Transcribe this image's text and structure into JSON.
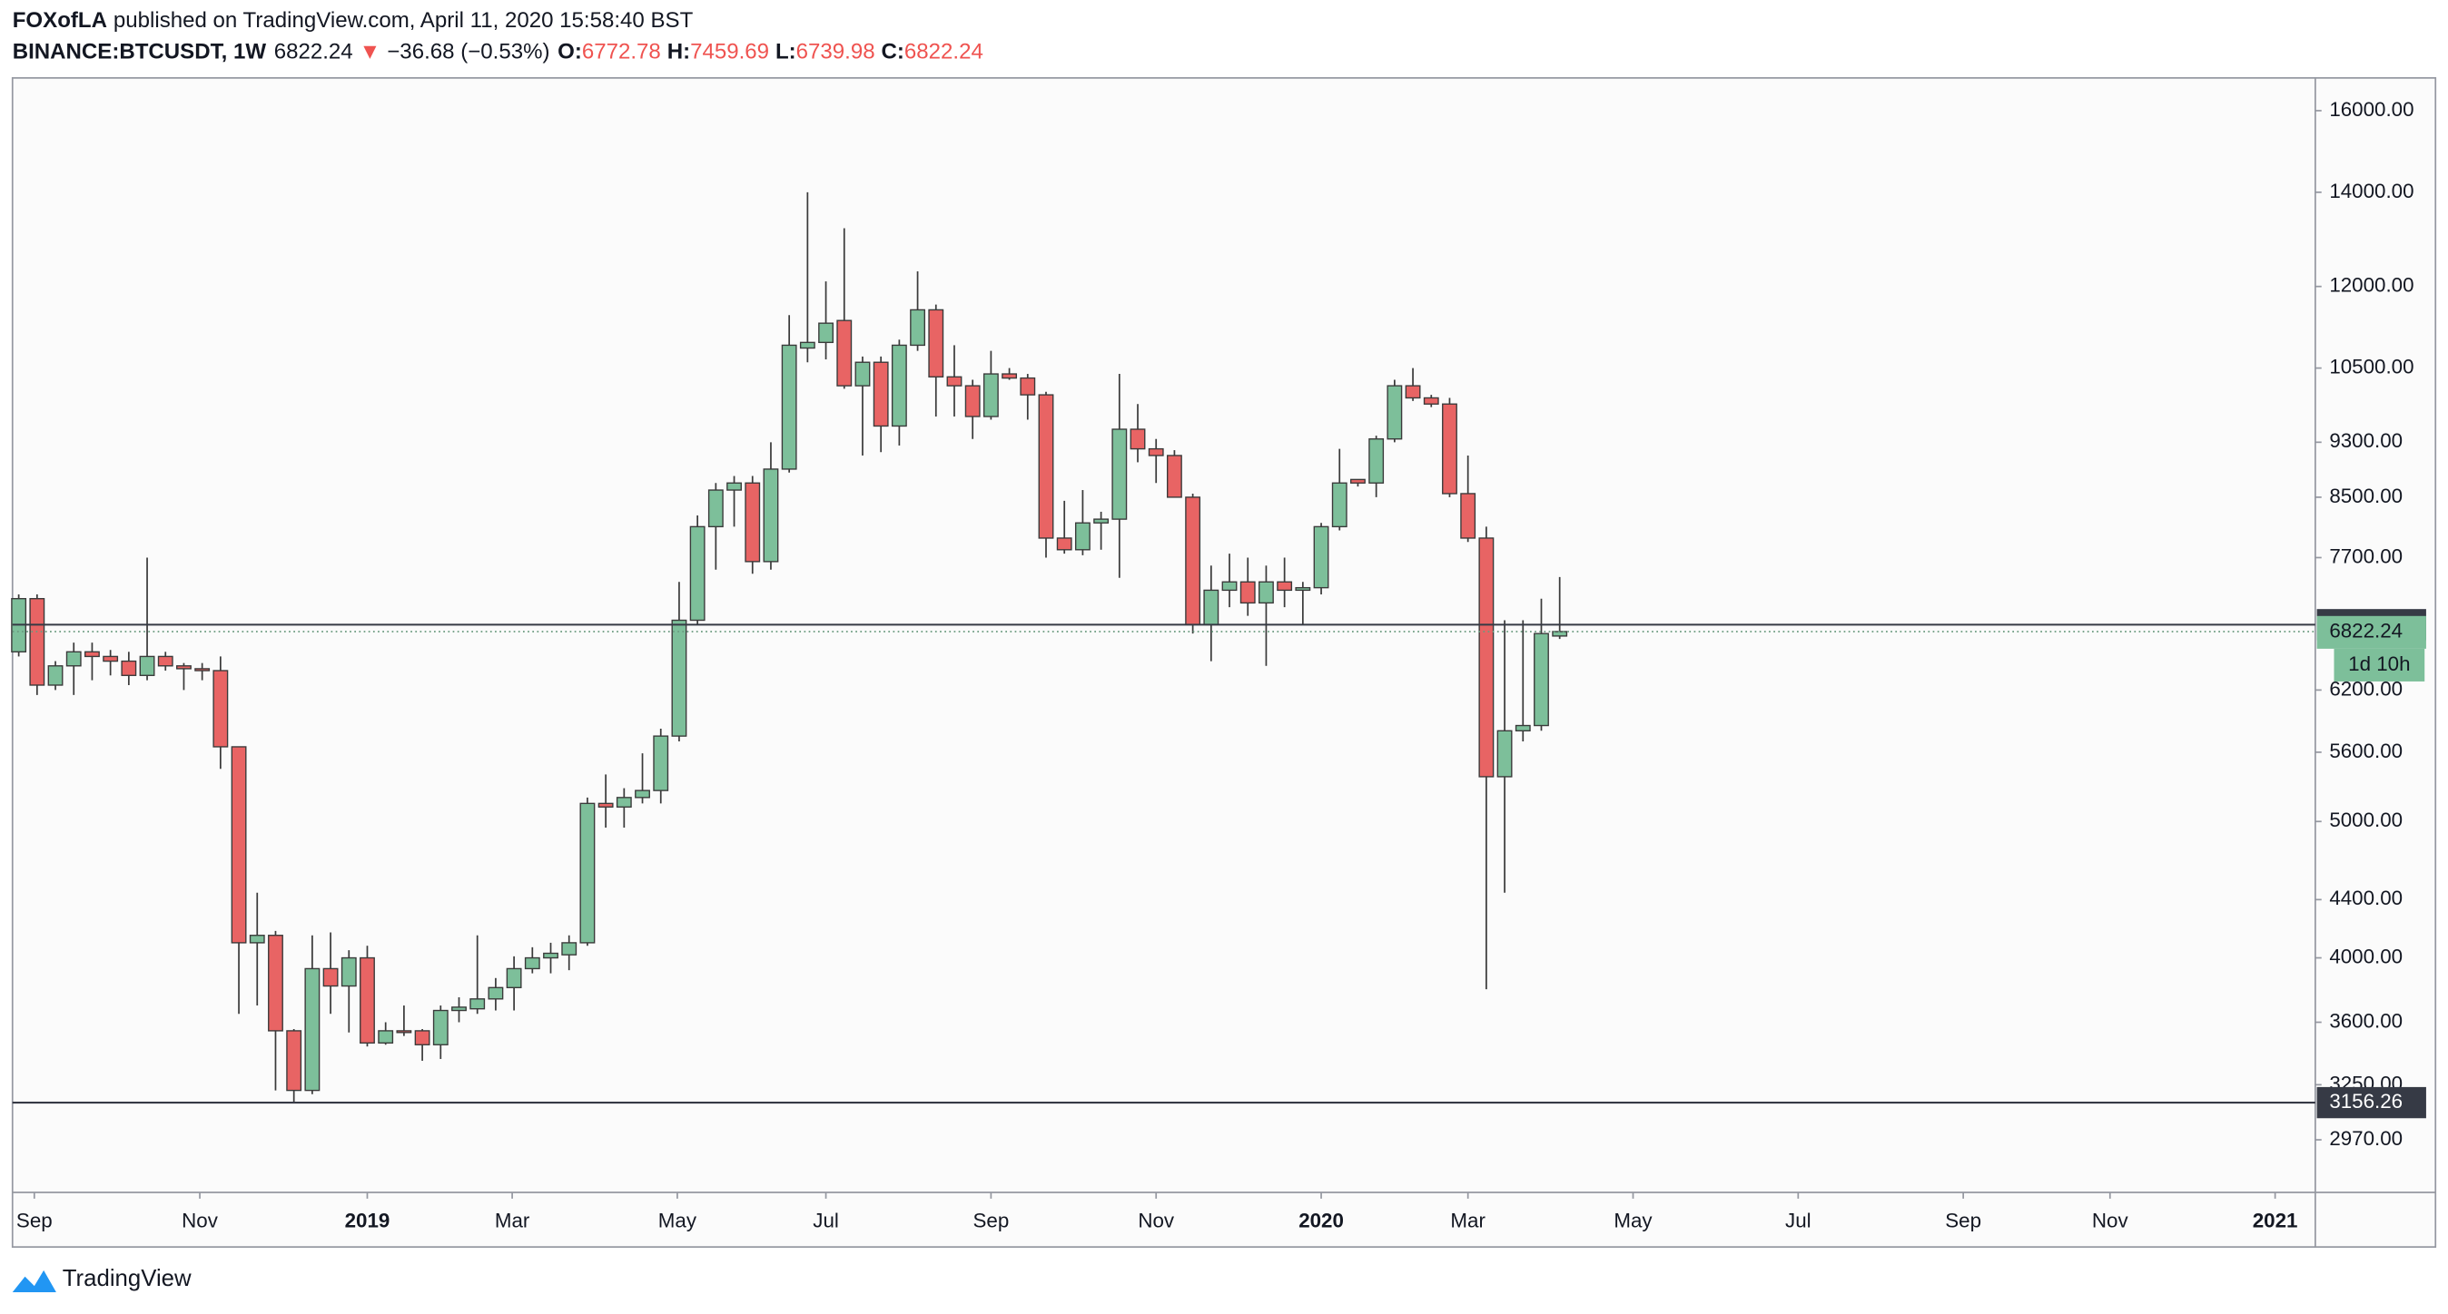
{
  "header": {
    "publisher": "FOXofLA",
    "published": "published on TradingView.com, April 11, 2020 15:58:40 BST",
    "symbol": "BINANCE:BTCUSDT, 1W",
    "last": "6822.24",
    "arrow": "▼",
    "change": "−36.68 (−0.53%)",
    "ohlc": [
      {
        "label": "O:",
        "value": "6772.78"
      },
      {
        "label": "H:",
        "value": "7459.69"
      },
      {
        "label": "L:",
        "value": "6739.98"
      },
      {
        "label": "C:",
        "value": "6822.24"
      }
    ]
  },
  "footer": {
    "brand": "TradingView"
  },
  "chart_data": {
    "type": "candlestick",
    "log_scale": true,
    "grid": false,
    "up_color": "#7dbf9a",
    "down_color": "#e86464",
    "border_color": "#3a3a3a",
    "categories": [
      null,
      null,
      null,
      null,
      null,
      null,
      null,
      null,
      null,
      null,
      null,
      null,
      null,
      null,
      null,
      null,
      null,
      null,
      null,
      null,
      null,
      null,
      null,
      null,
      null,
      null,
      null,
      null,
      null,
      null,
      null,
      null,
      null,
      null,
      null,
      null,
      null,
      null,
      null,
      null,
      null,
      null,
      null,
      null,
      null,
      null,
      null,
      null,
      null,
      null,
      null,
      null,
      null,
      null,
      null,
      null,
      null,
      null,
      null,
      null,
      null,
      null,
      null,
      null,
      null,
      null,
      null,
      null,
      null,
      null,
      null,
      null,
      null,
      null,
      null,
      null,
      null,
      null,
      null,
      null,
      null,
      null,
      null,
      null,
      null
    ],
    "open": [
      6600,
      7200,
      6250,
      6450,
      6600,
      6550,
      6500,
      6350,
      6550,
      6450,
      6420,
      6400,
      5650,
      4100,
      4150,
      3550,
      3220,
      3930,
      3820,
      4000,
      3480,
      3550,
      3550,
      3470,
      3670,
      3680,
      3740,
      3810,
      3930,
      4000,
      4020,
      4100,
      5150,
      5120,
      5200,
      5260,
      5750,
      6950,
      8100,
      8600,
      8700,
      7650,
      8900,
      10850,
      10950,
      11350,
      10200,
      10600,
      9550,
      10900,
      11550,
      10350,
      10200,
      9700,
      10400,
      10330,
      10050,
      7950,
      7800,
      8150,
      8200,
      9500,
      9200,
      9100,
      8500,
      6900,
      7300,
      7400,
      7150,
      7400,
      7300,
      7330,
      8100,
      8750,
      8700,
      9350,
      10200,
      10000,
      9900,
      8550,
      7950,
      5380,
      5800,
      5850,
      6772.78
    ],
    "high": [
      7250,
      7250,
      6500,
      6700,
      6700,
      6620,
      6600,
      7700,
      6600,
      6480,
      6480,
      6550,
      5650,
      4450,
      4180,
      3560,
      4150,
      4170,
      4050,
      4080,
      3600,
      3700,
      3560,
      3700,
      3750,
      4150,
      3870,
      4010,
      4070,
      4100,
      4150,
      5200,
      5400,
      5280,
      5590,
      5820,
      7400,
      8250,
      8700,
      8800,
      8800,
      9300,
      11450,
      14000,
      12100,
      13200,
      10700,
      10700,
      11000,
      12300,
      11650,
      10900,
      10300,
      10800,
      10500,
      10400,
      10100,
      8450,
      8600,
      8300,
      10400,
      9900,
      9350,
      9180,
      8550,
      7600,
      7750,
      7700,
      7600,
      7700,
      7400,
      8150,
      9200,
      8750,
      9400,
      10300,
      10500,
      10050,
      10000,
      9100,
      8100,
      6950,
      6950,
      7200,
      7459.69
    ],
    "low": [
      6550,
      6150,
      6200,
      6150,
      6300,
      6350,
      6250,
      6300,
      6400,
      6200,
      6300,
      5450,
      3650,
      3700,
      3220,
      3160,
      3200,
      3650,
      3540,
      3460,
      3470,
      3520,
      3380,
      3390,
      3600,
      3650,
      3670,
      3670,
      3900,
      3900,
      3920,
      4080,
      4950,
      4950,
      5150,
      5150,
      5700,
      6900,
      7550,
      8100,
      7500,
      7550,
      8850,
      10600,
      10650,
      10150,
      9100,
      9150,
      9250,
      10800,
      9700,
      9700,
      9350,
      9650,
      10300,
      9650,
      7700,
      7750,
      7730,
      7800,
      7450,
      9000,
      8700,
      8500,
      6800,
      6500,
      7100,
      7000,
      6450,
      7100,
      6900,
      7250,
      8050,
      8650,
      8500,
      9300,
      9950,
      9850,
      8500,
      7900,
      3800,
      4450,
      5700,
      5800,
      6739.98
    ],
    "close": [
      7200,
      6250,
      6450,
      6600,
      6550,
      6500,
      6350,
      6550,
      6450,
      6420,
      6400,
      5650,
      4100,
      4150,
      3550,
      3220,
      3930,
      3820,
      4000,
      3480,
      3550,
      3540,
      3470,
      3670,
      3690,
      3740,
      3810,
      3930,
      4000,
      4030,
      4100,
      5150,
      5120,
      5200,
      5260,
      5750,
      6950,
      8100,
      8600,
      8700,
      7650,
      8900,
      10900,
      10950,
      11300,
      10200,
      10600,
      9550,
      10900,
      11550,
      10350,
      10200,
      9700,
      10400,
      10330,
      10050,
      7950,
      7800,
      8150,
      8200,
      9500,
      9200,
      9100,
      8500,
      6900,
      7300,
      7400,
      7150,
      7400,
      7300,
      7330,
      8100,
      8700,
      8700,
      9350,
      10200,
      10000,
      9900,
      8550,
      7950,
      5380,
      5800,
      5850,
      6800,
      6822.24
    ],
    "ylim": [
      2725,
      16880
    ],
    "yticks": [
      {
        "value": 16000,
        "label": "16000.00"
      },
      {
        "value": 14000,
        "label": "14000.00"
      },
      {
        "value": 12000,
        "label": "12000.00"
      },
      {
        "value": 10500,
        "label": "10500.00"
      },
      {
        "value": 9300,
        "label": "9300.00"
      },
      {
        "value": 8500,
        "label": "8500.00"
      },
      {
        "value": 7700,
        "label": "7700.00"
      },
      {
        "value": 6200,
        "label": "6200.00"
      },
      {
        "value": 5600,
        "label": "5600.00"
      },
      {
        "value": 5000,
        "label": "5000.00"
      },
      {
        "value": 4400,
        "label": "4400.00"
      },
      {
        "value": 4000,
        "label": "4000.00"
      },
      {
        "value": 3600,
        "label": "3600.00"
      },
      {
        "value": 3250,
        "label": "3250.00"
      },
      {
        "value": 2970,
        "label": "2970.00"
      }
    ],
    "xlim": [
      -0.34,
      125.19
    ],
    "xticks": [
      {
        "value": 0.85,
        "label": "Sep"
      },
      {
        "value": 9.87,
        "label": "Nov"
      },
      {
        "value": 19,
        "label": "2019"
      },
      {
        "value": 26.9,
        "label": "Mar"
      },
      {
        "value": 35.9,
        "label": "May"
      },
      {
        "value": 44,
        "label": "Jul"
      },
      {
        "value": 53,
        "label": "Sep"
      },
      {
        "value": 62,
        "label": "Nov"
      },
      {
        "value": 71,
        "label": "2020"
      },
      {
        "value": 79,
        "label": "Mar"
      },
      {
        "value": 88,
        "label": "May"
      },
      {
        "value": 97,
        "label": "Jul"
      },
      {
        "value": 106,
        "label": "Sep"
      },
      {
        "value": 114,
        "label": "Nov"
      },
      {
        "value": 123,
        "label": "2021"
      }
    ],
    "last_price": 6822.24,
    "countdown": "1d 10h",
    "horizontal_lines": [
      {
        "value": 6900
      },
      {
        "value": 3156.26,
        "label": "3156.26"
      }
    ]
  }
}
